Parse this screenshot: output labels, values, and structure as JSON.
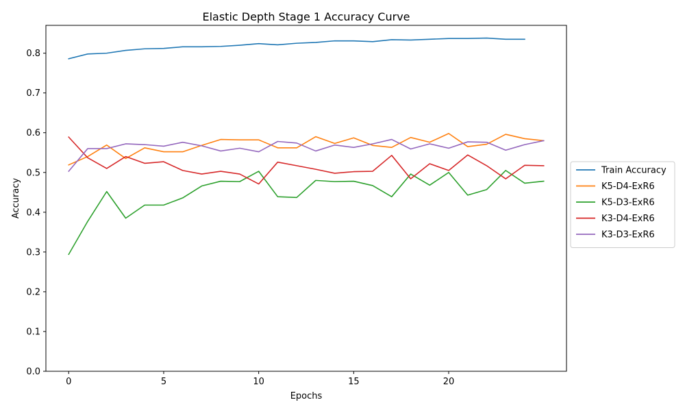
{
  "chart_data": {
    "type": "line",
    "title": "Elastic Depth Stage 1 Accuracy Curve",
    "xlabel": "Epochs",
    "ylabel": "Accuracy",
    "xlim": [
      -1.2,
      26.2
    ],
    "ylim": [
      0.0,
      0.87
    ],
    "xticks": [
      0,
      5,
      10,
      15,
      20
    ],
    "yticks": [
      0.0,
      0.1,
      0.2,
      0.3,
      0.4,
      0.5,
      0.6,
      0.7,
      0.8
    ],
    "legend_position": "center-right outside",
    "grid": false,
    "series": [
      {
        "name": "Train Accuracy",
        "color": "#1f77b4",
        "x": [
          0,
          1,
          2,
          3,
          4,
          5,
          6,
          7,
          8,
          9,
          10,
          11,
          12,
          13,
          14,
          15,
          16,
          17,
          18,
          19,
          20,
          21,
          22,
          23,
          24
        ],
        "values": [
          0.786,
          0.798,
          0.8,
          0.807,
          0.811,
          0.812,
          0.816,
          0.816,
          0.817,
          0.82,
          0.824,
          0.821,
          0.825,
          0.827,
          0.831,
          0.831,
          0.829,
          0.834,
          0.833,
          0.835,
          0.837,
          0.837,
          0.838,
          0.835,
          0.835
        ]
      },
      {
        "name": "K5-D4-ExR6",
        "color": "#ff7f0e",
        "x": [
          0,
          1,
          2,
          3,
          4,
          5,
          6,
          7,
          8,
          9,
          10,
          11,
          12,
          13,
          14,
          15,
          16,
          17,
          18,
          19,
          20,
          21,
          22,
          23,
          24,
          25
        ],
        "values": [
          0.519,
          0.54,
          0.569,
          0.535,
          0.562,
          0.552,
          0.552,
          0.568,
          0.583,
          0.582,
          0.582,
          0.562,
          0.562,
          0.59,
          0.573,
          0.587,
          0.568,
          0.563,
          0.588,
          0.576,
          0.598,
          0.565,
          0.571,
          0.596,
          0.585,
          0.58
        ]
      },
      {
        "name": "K5-D3-ExR6",
        "color": "#2ca02c",
        "x": [
          0,
          1,
          2,
          3,
          4,
          5,
          6,
          7,
          8,
          9,
          10,
          11,
          12,
          13,
          14,
          15,
          16,
          17,
          18,
          19,
          20,
          21,
          22,
          23,
          24,
          25
        ],
        "values": [
          0.294,
          0.377,
          0.452,
          0.385,
          0.418,
          0.418,
          0.436,
          0.466,
          0.478,
          0.477,
          0.503,
          0.439,
          0.437,
          0.48,
          0.477,
          0.478,
          0.467,
          0.439,
          0.496,
          0.468,
          0.5,
          0.443,
          0.457,
          0.505,
          0.473,
          0.478
        ]
      },
      {
        "name": "K3-D4-ExR6",
        "color": "#d62728",
        "x": [
          0,
          1,
          2,
          3,
          4,
          5,
          6,
          7,
          8,
          9,
          10,
          11,
          12,
          13,
          14,
          15,
          16,
          17,
          18,
          19,
          20,
          21,
          22,
          23,
          24,
          25
        ],
        "values": [
          0.589,
          0.537,
          0.51,
          0.54,
          0.523,
          0.527,
          0.505,
          0.496,
          0.503,
          0.496,
          0.471,
          0.526,
          0.517,
          0.508,
          0.498,
          0.502,
          0.503,
          0.543,
          0.484,
          0.522,
          0.505,
          0.544,
          0.517,
          0.484,
          0.518,
          0.517
        ]
      },
      {
        "name": "K3-D3-ExR6",
        "color": "#9467bd",
        "x": [
          0,
          1,
          2,
          3,
          4,
          5,
          6,
          7,
          8,
          9,
          10,
          11,
          12,
          13,
          14,
          15,
          16,
          17,
          18,
          19,
          20,
          21,
          22,
          23,
          24,
          25
        ],
        "values": [
          0.503,
          0.56,
          0.56,
          0.572,
          0.57,
          0.566,
          0.576,
          0.567,
          0.554,
          0.561,
          0.552,
          0.578,
          0.574,
          0.554,
          0.569,
          0.563,
          0.572,
          0.583,
          0.559,
          0.572,
          0.561,
          0.577,
          0.576,
          0.556,
          0.57,
          0.58
        ]
      }
    ]
  }
}
